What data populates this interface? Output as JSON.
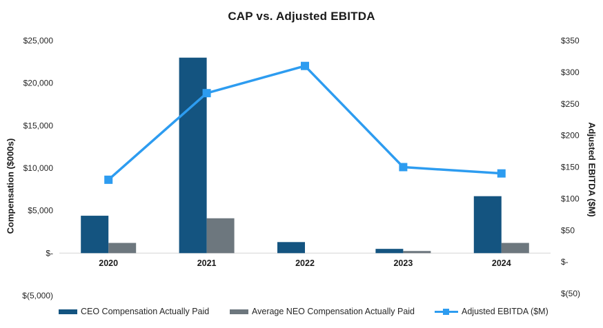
{
  "chart_data": {
    "type": "combo-bar-line",
    "title": "CAP vs. Adjusted EBITDA",
    "categories": [
      "2020",
      "2021",
      "2022",
      "2023",
      "2024"
    ],
    "series": [
      {
        "name": "CEO Compensation Actually Paid",
        "type": "bar",
        "axis": "left",
        "values": [
          4400,
          23000,
          1300,
          500,
          6700
        ],
        "color": "#145480"
      },
      {
        "name": "Average NEO Compensation Actually Paid",
        "type": "bar",
        "axis": "left",
        "values": [
          1200,
          4100,
          0,
          250,
          1200
        ],
        "color": "#6D777E"
      },
      {
        "name": "Adjusted EBITDA ($M)",
        "type": "line",
        "axis": "right",
        "values": [
          130,
          267,
          310,
          150,
          140
        ],
        "color": "#2D9CF0"
      }
    ],
    "left_axis": {
      "title": "Compensation ($000s)",
      "min": -5000,
      "max": 25000,
      "ticks": [
        {
          "v": 25000,
          "label": "$25,000"
        },
        {
          "v": 20000,
          "label": "$20,000"
        },
        {
          "v": 15000,
          "label": "$15,000"
        },
        {
          "v": 10000,
          "label": "$10,000"
        },
        {
          "v": 5000,
          "label": "$5,000"
        },
        {
          "v": 0,
          "label": "$-"
        },
        {
          "v": -5000,
          "label": "$(5,000)"
        }
      ]
    },
    "right_axis": {
      "title": "Adjusted EBITDA ($M)",
      "min": -50,
      "max": 350,
      "ticks": [
        {
          "v": 350,
          "label": "$350"
        },
        {
          "v": 300,
          "label": "$300"
        },
        {
          "v": 250,
          "label": "$250"
        },
        {
          "v": 200,
          "label": "$200"
        },
        {
          "v": 150,
          "label": "$150"
        },
        {
          "v": 100,
          "label": "$100"
        },
        {
          "v": 50,
          "label": "$50"
        },
        {
          "v": 0,
          "label": "$-"
        },
        {
          "v": -50,
          "label": "$(50)"
        }
      ]
    },
    "grid": false,
    "legend_position": "bottom",
    "colors": {
      "axis_line": "#D9D9D9",
      "tick_text": "#262626",
      "category_text": "#1a1a1a"
    }
  }
}
